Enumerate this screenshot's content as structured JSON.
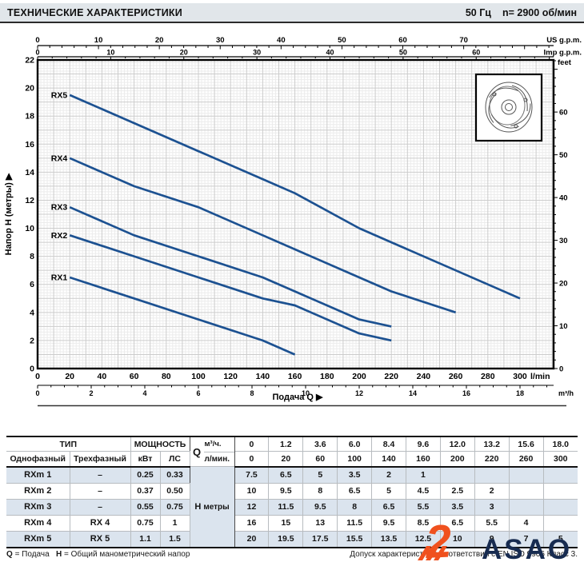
{
  "header": {
    "title": "ТЕХНИЧЕСКИЕ ХАРАКТЕРИСТИКИ",
    "frequency": "50 Гц",
    "speed": "n= 2900  об/мин"
  },
  "chart_data": {
    "type": "line",
    "curve_color": "#1c5191",
    "xlabel": "Подача Q  ▶",
    "xlim_lmin": [
      0,
      320
    ],
    "ylim_m": [
      0,
      22
    ],
    "grid": "on",
    "x_axis_lmin": {
      "label": "l/min",
      "ticks": [
        0,
        20,
        40,
        60,
        80,
        100,
        120,
        140,
        160,
        180,
        200,
        220,
        240,
        260,
        280,
        300
      ]
    },
    "x_axis_m3h": {
      "label": "m³/h",
      "ticks": [
        0,
        2,
        4,
        6,
        8,
        10,
        12,
        14,
        16,
        18
      ]
    },
    "x_axis_us": {
      "label": "US g.p.m.",
      "ticks": [
        0,
        10,
        20,
        30,
        40,
        50,
        60,
        70
      ]
    },
    "x_axis_imp": {
      "label": "Imp g.p.m.",
      "ticks": [
        0,
        10,
        20,
        30,
        40,
        50,
        60
      ]
    },
    "y_axis_m": {
      "label": "Напор H (метры) ▶",
      "ticks": [
        0,
        2,
        4,
        6,
        8,
        10,
        12,
        14,
        16,
        18,
        20,
        22
      ]
    },
    "y_axis_ft": {
      "label": "feet",
      "ticks": [
        0,
        10,
        20,
        30,
        40,
        50,
        60
      ]
    },
    "series": [
      {
        "name": "RX1",
        "q_lmin": [
          20,
          60,
          100,
          140,
          160
        ],
        "h_m": [
          6.5,
          5,
          3.5,
          2,
          1
        ]
      },
      {
        "name": "RX2",
        "q_lmin": [
          20,
          60,
          100,
          140,
          160,
          200,
          220
        ],
        "h_m": [
          9.5,
          8,
          6.5,
          5,
          4.5,
          2.5,
          2
        ]
      },
      {
        "name": "RX3",
        "q_lmin": [
          20,
          60,
          100,
          140,
          160,
          200,
          220
        ],
        "h_m": [
          11.5,
          9.5,
          8,
          6.5,
          5.5,
          3.5,
          3
        ]
      },
      {
        "name": "RX4",
        "q_lmin": [
          20,
          60,
          100,
          140,
          160,
          200,
          220,
          260
        ],
        "h_m": [
          15,
          13,
          11.5,
          9.5,
          8.5,
          6.5,
          5.5,
          4
        ]
      },
      {
        "name": "RX5",
        "q_lmin": [
          20,
          60,
          100,
          140,
          160,
          200,
          220,
          260,
          300
        ],
        "h_m": [
          19.5,
          17.5,
          15.5,
          13.5,
          12.5,
          10,
          9,
          7,
          5
        ]
      }
    ]
  },
  "table": {
    "header": {
      "tip": "ТИП",
      "single_phase": "Однофазный",
      "three_phase": "Трехфазный",
      "power": "МОЩНОСТЬ",
      "kw": "кВт",
      "hp": "ЛС",
      "q": "Q",
      "m3h": "м³/ч.",
      "lmin": "л/мин.",
      "h": "H",
      "metry": "метры"
    },
    "q_m3h": [
      "0",
      "1.2",
      "3.6",
      "6.0",
      "8.4",
      "9.6",
      "12.0",
      "13.2",
      "15.6",
      "18.0"
    ],
    "q_lmin": [
      "0",
      "20",
      "60",
      "100",
      "140",
      "160",
      "200",
      "220",
      "260",
      "300"
    ],
    "rows": [
      {
        "single": "RXm 1",
        "three": "–",
        "kw": "0.25",
        "hp": "0.33",
        "h": [
          "7.5",
          "6.5",
          "5",
          "3.5",
          "2",
          "1",
          "",
          "",
          "",
          ""
        ]
      },
      {
        "single": "RXm 2",
        "three": "–",
        "kw": "0.37",
        "hp": "0.50",
        "h": [
          "10",
          "9.5",
          "8",
          "6.5",
          "5",
          "4.5",
          "2.5",
          "2",
          "",
          ""
        ]
      },
      {
        "single": "RXm 3",
        "three": "–",
        "kw": "0.55",
        "hp": "0.75",
        "h": [
          "12",
          "11.5",
          "9.5",
          "8",
          "6.5",
          "5.5",
          "3.5",
          "3",
          "",
          ""
        ]
      },
      {
        "single": "RXm 4",
        "three": "RX 4",
        "kw": "0.75",
        "hp": "1",
        "h": [
          "16",
          "15",
          "13",
          "11.5",
          "9.5",
          "8.5",
          "6.5",
          "5.5",
          "4",
          ""
        ]
      },
      {
        "single": "RXm 5",
        "three": "RX 5",
        "kw": "1.1",
        "hp": "1.5",
        "h": [
          "20",
          "19.5",
          "17.5",
          "15.5",
          "13.5",
          "12.5",
          "10",
          "9",
          "7",
          "5"
        ]
      }
    ]
  },
  "footer": {
    "q_label": "Q",
    "q_text": "= Подача",
    "h_label": "H",
    "h_text": "= Общий манометрический напор",
    "right": "Допуск характеристик в соответствии с EN ISO 9906 Класс 3."
  },
  "logo": {
    "numeral": "2",
    "text": "ASAO",
    "orange": "#f0511e",
    "navy": "#172b50"
  }
}
